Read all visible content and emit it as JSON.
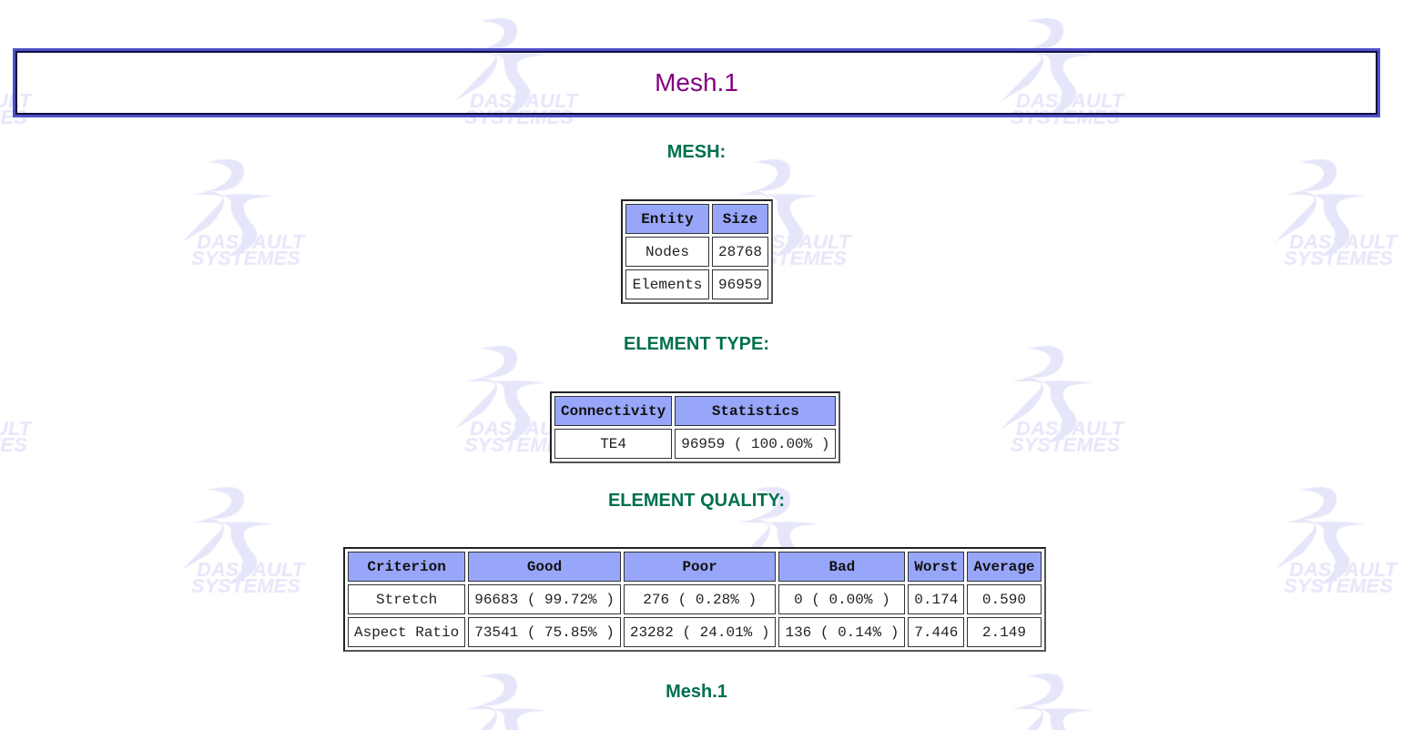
{
  "watermark": {
    "logo": "3DS",
    "line1": "DASSAULT",
    "line2": "SYSTEMES",
    "color": "#e6e6fa"
  },
  "title": "Mesh.1",
  "sections": {
    "mesh": {
      "heading": "MESH:",
      "headers": [
        "Entity",
        "Size"
      ],
      "rows": [
        [
          "Nodes",
          "28768"
        ],
        [
          "Elements",
          "96959"
        ]
      ]
    },
    "element_type": {
      "heading": "ELEMENT TYPE:",
      "headers": [
        "Connectivity",
        "Statistics"
      ],
      "rows": [
        [
          "TE4",
          "96959 ( 100.00% )"
        ]
      ]
    },
    "element_quality": {
      "heading": "ELEMENT QUALITY:",
      "headers": [
        "Criterion",
        "Good",
        "Poor",
        "Bad",
        "Worst",
        "Average"
      ],
      "rows": [
        [
          "Stretch",
          "96683 ( 99.72% )",
          "276 ( 0.28% )",
          "0 ( 0.00% )",
          "0.174",
          "0.590"
        ],
        [
          "Aspect Ratio",
          "73541 ( 75.85% )",
          "23282 ( 24.01% )",
          "136 ( 0.14% )",
          "7.446",
          "2.149"
        ]
      ]
    }
  },
  "footer_heading": "Mesh.1",
  "colors": {
    "title": "#800080",
    "heading": "#007050",
    "table_header_bg": "#98a6fa",
    "title_border": "#5050c8"
  }
}
